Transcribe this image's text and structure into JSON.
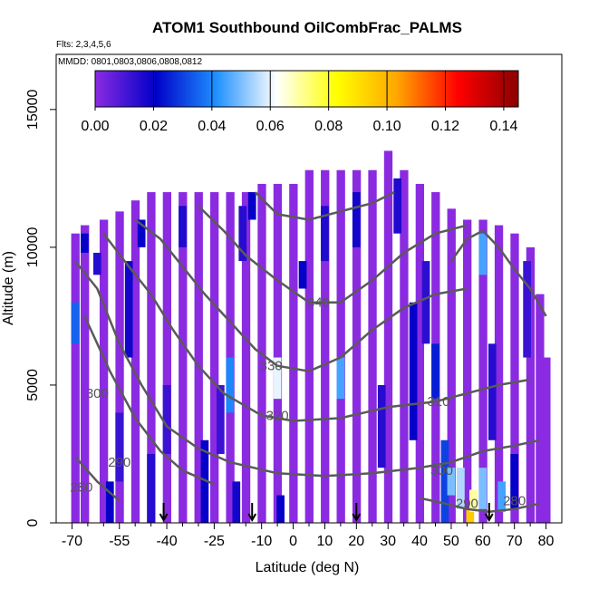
{
  "chart_data": {
    "type": "heatmap",
    "title": "ATOM1 Southbound OilCombFrac_PALMS",
    "flights_note": "Flts: 2,3,4,5,6",
    "dates_note": "MMDD: 0801,0803,0806,0808,0812",
    "xlabel": "Latitude (deg N)",
    "ylabel": "Altitude (m)",
    "xlim": [
      -75,
      85
    ],
    "ylim": [
      0,
      17000
    ],
    "x_ticks": [
      -70,
      -55,
      -40,
      -25,
      -10,
      0,
      10,
      20,
      30,
      40,
      50,
      60,
      70,
      80
    ],
    "x_minor_ticks": [
      -65,
      -60,
      -50,
      -45,
      -35,
      -30,
      -20,
      -15,
      -5,
      5,
      15,
      25,
      35,
      45,
      55,
      65,
      75
    ],
    "y_ticks": [
      0,
      5000,
      10000,
      15000
    ],
    "colorbar": {
      "range": [
        0,
        0.145
      ],
      "ticks": [
        "0.00",
        "0.02",
        "0.04",
        "0.06",
        "0.08",
        "0.10",
        "0.12",
        "0.14"
      ],
      "tick_values": [
        0,
        0.02,
        0.04,
        0.06,
        0.08,
        0.1,
        0.12,
        0.14
      ],
      "colors": [
        "#8a2be2",
        "#0000c8",
        "#1e90ff",
        "#ffffff",
        "#ffff00",
        "#ffa500",
        "#ff0000",
        "#8b0000"
      ]
    },
    "background_value": 0.0,
    "coverage": {
      "lat_bin_width": 2.5,
      "column_top_altitude": [
        [
          -69,
          10500
        ],
        [
          -66,
          10800
        ],
        [
          -60,
          11000
        ],
        [
          -55,
          11300
        ],
        [
          -50,
          11700
        ],
        [
          -45,
          12000
        ],
        [
          -40,
          12000
        ],
        [
          -35,
          12000
        ],
        [
          -30,
          12000
        ],
        [
          -25,
          12000
        ],
        [
          -20,
          12000
        ],
        [
          -15,
          12000
        ],
        [
          -10,
          12300
        ],
        [
          -5,
          12300
        ],
        [
          0,
          12300
        ],
        [
          5,
          12800
        ],
        [
          10,
          12800
        ],
        [
          15,
          12800
        ],
        [
          20,
          12800
        ],
        [
          25,
          12800
        ],
        [
          30,
          13500
        ],
        [
          35,
          12800
        ],
        [
          40,
          12300
        ],
        [
          45,
          12000
        ],
        [
          50,
          11400
        ],
        [
          55,
          11000
        ],
        [
          60,
          11000
        ],
        [
          65,
          10800
        ],
        [
          70,
          10500
        ],
        [
          75,
          10000
        ],
        [
          78,
          8300
        ],
        [
          80,
          6000
        ]
      ],
      "column_bottom_altitude": 0
    },
    "cells": [
      {
        "lat": -69,
        "alt": [
          6500,
          8000
        ],
        "value": 0.035
      },
      {
        "lat": -66,
        "alt": [
          9800,
          10500
        ],
        "value": 0.02
      },
      {
        "lat": -62,
        "alt": [
          9000,
          9800
        ],
        "value": 0.015
      },
      {
        "lat": -58,
        "alt": [
          0,
          1500
        ],
        "value": 0.02
      },
      {
        "lat": -55,
        "alt": [
          1500,
          4000
        ],
        "value": 0.012
      },
      {
        "lat": -52,
        "alt": [
          6000,
          9500
        ],
        "value": 0.018
      },
      {
        "lat": -48,
        "alt": [
          10000,
          11000
        ],
        "value": 0.02
      },
      {
        "lat": -45,
        "alt": [
          0,
          2500
        ],
        "value": 0.015
      },
      {
        "lat": -40,
        "alt": [
          2500,
          5000
        ],
        "value": 0.012
      },
      {
        "lat": -35,
        "alt": [
          10000,
          11500
        ],
        "value": 0.016
      },
      {
        "lat": -28,
        "alt": [
          0,
          3000
        ],
        "value": 0.02
      },
      {
        "lat": -23,
        "alt": [
          2500,
          5000
        ],
        "value": 0.012
      },
      {
        "lat": -20,
        "alt": [
          4000,
          6000
        ],
        "value": 0.04
      },
      {
        "lat": -18,
        "alt": [
          0,
          1500
        ],
        "value": 0.018
      },
      {
        "lat": -16,
        "alt": [
          9500,
          11500
        ],
        "value": 0.015
      },
      {
        "lat": -13,
        "alt": [
          11000,
          12000
        ],
        "value": 0.02
      },
      {
        "lat": -5,
        "alt": [
          4500,
          6000
        ],
        "value": 0.06
      },
      {
        "lat": -4,
        "alt": [
          0,
          1000
        ],
        "value": 0.02
      },
      {
        "lat": 3,
        "alt": [
          8500,
          9500
        ],
        "value": 0.02
      },
      {
        "lat": 10,
        "alt": [
          9500,
          11500
        ],
        "value": 0.016
      },
      {
        "lat": 15,
        "alt": [
          4500,
          6000
        ],
        "value": 0.045
      },
      {
        "lat": 20,
        "alt": [
          10000,
          12000
        ],
        "value": 0.018
      },
      {
        "lat": 28,
        "alt": [
          2000,
          5000
        ],
        "value": 0.015
      },
      {
        "lat": 33,
        "alt": [
          10500,
          12500
        ],
        "value": 0.016
      },
      {
        "lat": 38,
        "alt": [
          3000,
          8000
        ],
        "value": 0.02
      },
      {
        "lat": 42,
        "alt": [
          6500,
          9500
        ],
        "value": 0.014
      },
      {
        "lat": 45,
        "alt": [
          4500,
          6500
        ],
        "value": 0.025
      },
      {
        "lat": 48,
        "alt": [
          0,
          3000
        ],
        "value": 0.03
      },
      {
        "lat": 50,
        "alt": [
          1000,
          2000
        ],
        "value": 0.05
      },
      {
        "lat": 53,
        "alt": [
          500,
          2000
        ],
        "value": 0.055
      },
      {
        "lat": 56,
        "alt": [
          0,
          500
        ],
        "value": 0.095
      },
      {
        "lat": 57,
        "alt": [
          400,
          1200
        ],
        "value": 0.07
      },
      {
        "lat": 60,
        "alt": [
          500,
          2000
        ],
        "value": 0.05
      },
      {
        "lat": 60,
        "alt": [
          9000,
          10500
        ],
        "value": 0.045
      },
      {
        "lat": 63,
        "alt": [
          3000,
          6500
        ],
        "value": 0.015
      },
      {
        "lat": 66,
        "alt": [
          400,
          1500
        ],
        "value": 0.045
      },
      {
        "lat": 70,
        "alt": [
          500,
          2500
        ],
        "value": 0.02
      },
      {
        "lat": 74,
        "alt": [
          6000,
          9500
        ],
        "value": 0.012
      }
    ],
    "contour_labels": [
      {
        "text": "340",
        "lat": 8,
        "alt": 8000
      },
      {
        "text": "330",
        "lat": -7,
        "alt": 5700
      },
      {
        "text": "320",
        "lat": -5,
        "alt": 3900
      },
      {
        "text": "310",
        "lat": 46,
        "alt": 4400
      },
      {
        "text": "300",
        "lat": 47,
        "alt": 1900
      },
      {
        "text": "300",
        "lat": -62,
        "alt": 4700
      },
      {
        "text": "290",
        "lat": -55,
        "alt": 2200
      },
      {
        "text": "290",
        "lat": 55,
        "alt": 700
      },
      {
        "text": "280",
        "lat": -67,
        "alt": 1300
      },
      {
        "text": "280",
        "lat": 70,
        "alt": 800
      }
    ],
    "contour_lines": [
      [
        [
          -69,
          9500
        ],
        [
          -62,
          8500
        ],
        [
          -55,
          6500
        ],
        [
          -48,
          5000
        ],
        [
          -40,
          3500
        ],
        [
          -30,
          2700
        ],
        [
          -20,
          2200
        ],
        [
          -5,
          1800
        ],
        [
          10,
          1700
        ],
        [
          25,
          1800
        ],
        [
          40,
          2000
        ],
        [
          50,
          2200
        ],
        [
          60,
          2600
        ],
        [
          70,
          2800
        ],
        [
          78,
          3000
        ]
      ],
      [
        [
          -66,
          7500
        ],
        [
          -58,
          5500
        ],
        [
          -50,
          3800
        ],
        [
          -42,
          2600
        ],
        [
          -35,
          1900
        ],
        [
          -25,
          1400
        ]
      ],
      [
        [
          -69,
          2400
        ],
        [
          -62,
          1500
        ],
        [
          -55,
          800
        ]
      ],
      [
        [
          -60,
          10500
        ],
        [
          -52,
          9300
        ],
        [
          -45,
          8300
        ],
        [
          -38,
          7000
        ],
        [
          -30,
          5700
        ],
        [
          -22,
          4700
        ],
        [
          -10,
          3900
        ],
        [
          0,
          3700
        ],
        [
          15,
          3800
        ],
        [
          30,
          4200
        ],
        [
          45,
          4400
        ],
        [
          55,
          4700
        ],
        [
          65,
          5000
        ],
        [
          75,
          5200
        ]
      ],
      [
        [
          -50,
          11000
        ],
        [
          -42,
          10300
        ],
        [
          -35,
          9300
        ],
        [
          -28,
          8300
        ],
        [
          -20,
          7300
        ],
        [
          -12,
          6300
        ],
        [
          -5,
          5700
        ],
        [
          5,
          5500
        ],
        [
          15,
          6000
        ],
        [
          25,
          7000
        ],
        [
          35,
          7800
        ],
        [
          45,
          8300
        ],
        [
          55,
          8500
        ]
      ],
      [
        [
          -30,
          11500
        ],
        [
          -22,
          10600
        ],
        [
          -15,
          9700
        ],
        [
          -5,
          8800
        ],
        [
          5,
          8000
        ],
        [
          15,
          8000
        ],
        [
          25,
          8800
        ],
        [
          35,
          9800
        ],
        [
          45,
          10500
        ],
        [
          55,
          10800
        ]
      ],
      [
        [
          -12,
          12000
        ],
        [
          -5,
          11200
        ],
        [
          5,
          11000
        ],
        [
          15,
          11300
        ],
        [
          25,
          11600
        ],
        [
          32,
          12000
        ]
      ],
      [
        [
          40,
          900
        ],
        [
          48,
          700
        ],
        [
          55,
          500
        ],
        [
          62,
          400
        ],
        [
          70,
          500
        ],
        [
          78,
          700
        ]
      ],
      [
        [
          50,
          9500
        ],
        [
          55,
          10300
        ],
        [
          60,
          10600
        ],
        [
          65,
          10000
        ],
        [
          70,
          9200
        ],
        [
          75,
          8500
        ],
        [
          80,
          7500
        ]
      ]
    ],
    "flight_arrows_lat": [
      -41,
      -13,
      20,
      62
    ]
  }
}
